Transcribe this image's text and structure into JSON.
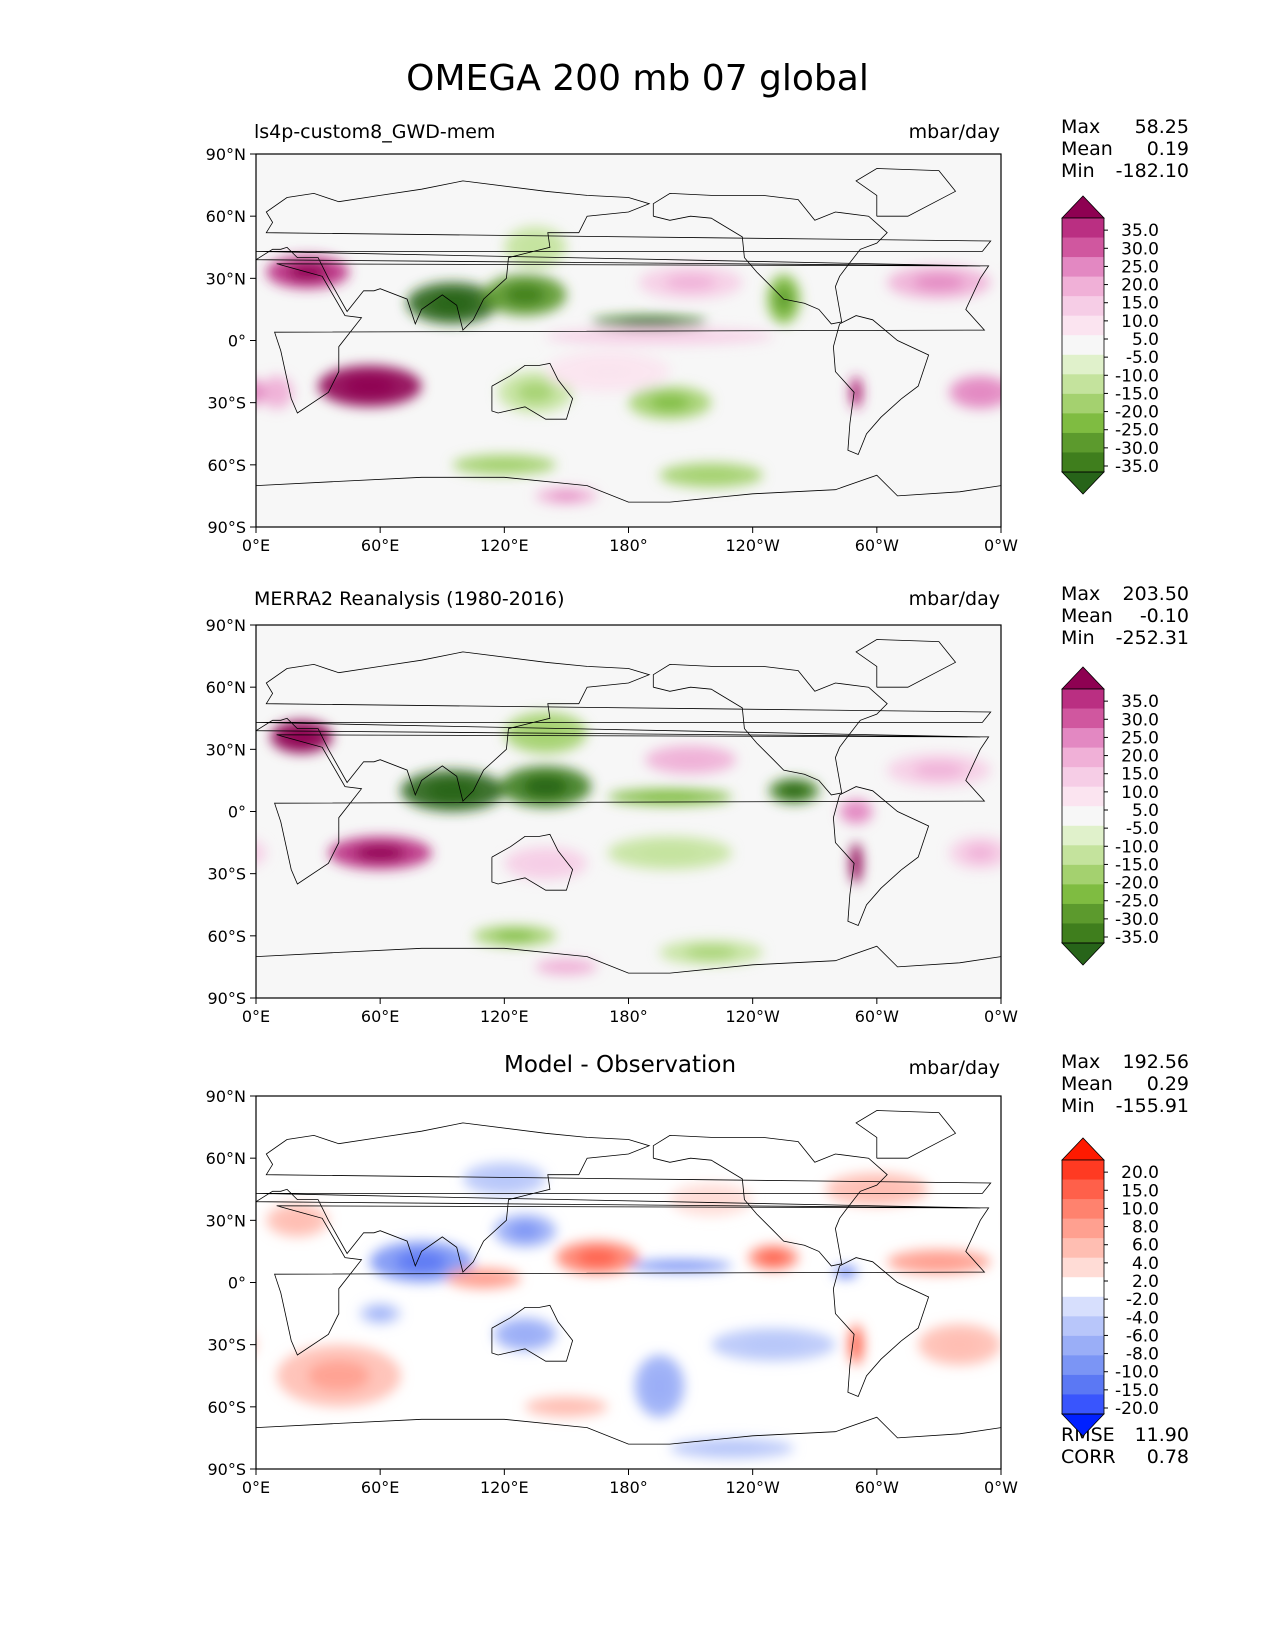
{
  "figure_title": "OMEGA 200 mb 07 global",
  "colors": {
    "field_cmap": [
      "#276419",
      "#3f7e1d",
      "#5c9a2d",
      "#7fbc41",
      "#a4d16f",
      "#c4e39d",
      "#e0f1cb",
      "#f7f7f7",
      "#fbe4f0",
      "#f6cde6",
      "#f0b0d7",
      "#e388c2",
      "#d0579f",
      "#ba2f82",
      "#8e0152"
    ],
    "diff_cmap": [
      "#0020ff",
      "#3955fd",
      "#5b78f4",
      "#7b95f5",
      "#9aaef7",
      "#b8c6fa",
      "#d7dffd",
      "#ffffff",
      "#ffdcd6",
      "#ffbeb2",
      "#ffa090",
      "#ff826e",
      "#ff604a",
      "#ff3a22",
      "#ff1a00"
    ],
    "coast": "#000000"
  },
  "chart_data": [
    {
      "type": "heatmap",
      "title": "ls4p-custom8_GWD-mem",
      "units": "mbar/day",
      "field": "model",
      "ylabels": [
        "90°N",
        "60°N",
        "30°N",
        "0°",
        "30°S",
        "60°S",
        "90°S"
      ],
      "xlabels": [
        "0°E",
        "60°E",
        "120°E",
        "180°",
        "120°W",
        "60°W",
        "0°W"
      ],
      "lon_range": [
        0,
        360
      ],
      "lat_range": [
        -90,
        90
      ],
      "stats": {
        "max_label": "Max",
        "max": "58.25",
        "mean_label": "Mean",
        "mean": "0.19",
        "min_label": "Min",
        "min": "-182.10"
      },
      "colorbar": {
        "levels": [
          "35.0",
          "30.0",
          "25.0",
          "20.0",
          "15.0",
          "10.0",
          "5.0",
          "-5.0",
          "-10.0",
          "-15.0",
          "-20.0",
          "-25.0",
          "-30.0",
          "-35.0"
        ],
        "extend": "both"
      },
      "features": [
        {
          "lon": 25,
          "lat": 33,
          "sx": 20,
          "sy": 8,
          "v": 32
        },
        {
          "lon": 55,
          "lat": -22,
          "sx": 25,
          "sy": 10,
          "v": 34
        },
        {
          "lon": 10,
          "lat": -25,
          "sx": 8,
          "sy": 8,
          "v": 14
        },
        {
          "lon": 95,
          "lat": 18,
          "sx": 22,
          "sy": 10,
          "v": -34
        },
        {
          "lon": 130,
          "lat": 22,
          "sx": 20,
          "sy": 10,
          "v": -26
        },
        {
          "lon": 135,
          "lat": 45,
          "sx": 15,
          "sy": 10,
          "v": -10
        },
        {
          "lon": 190,
          "lat": 9,
          "sx": 28,
          "sy": 3,
          "v": -28
        },
        {
          "lon": 255,
          "lat": 20,
          "sx": 8,
          "sy": 12,
          "v": -22
        },
        {
          "lon": 195,
          "lat": 2,
          "sx": 55,
          "sy": 4,
          "v": 8
        },
        {
          "lon": 210,
          "lat": 28,
          "sx": 25,
          "sy": 8,
          "v": 12
        },
        {
          "lon": 330,
          "lat": 28,
          "sx": 25,
          "sy": 8,
          "v": 16
        },
        {
          "lon": 350,
          "lat": -25,
          "sx": 15,
          "sy": 8,
          "v": 18
        },
        {
          "lon": 135,
          "lat": -25,
          "sx": 18,
          "sy": 10,
          "v": -12
        },
        {
          "lon": 200,
          "lat": -30,
          "sx": 20,
          "sy": 8,
          "v": -16
        },
        {
          "lon": 120,
          "lat": -60,
          "sx": 25,
          "sy": 5,
          "v": -14
        },
        {
          "lon": 220,
          "lat": -65,
          "sx": 25,
          "sy": 6,
          "v": -13
        },
        {
          "lon": 150,
          "lat": -75,
          "sx": 15,
          "sy": 4,
          "v": 16
        },
        {
          "lon": 290,
          "lat": -25,
          "sx": 3,
          "sy": 8,
          "v": 30
        },
        {
          "lon": 170,
          "lat": -15,
          "sx": 30,
          "sy": 10,
          "v": 6
        }
      ]
    },
    {
      "type": "heatmap",
      "title": "MERRA2 Reanalysis (1980-2016)",
      "units": "mbar/day",
      "field": "observation",
      "ylabels": [
        "90°N",
        "60°N",
        "30°N",
        "0°",
        "30°S",
        "60°S",
        "90°S"
      ],
      "xlabels": [
        "0°E",
        "60°E",
        "120°E",
        "180°",
        "120°W",
        "60°W",
        "0°W"
      ],
      "lon_range": [
        0,
        360
      ],
      "lat_range": [
        -90,
        90
      ],
      "stats": {
        "max_label": "Max",
        "max": "203.50",
        "mean_label": "Mean",
        "mean": "-0.10",
        "min_label": "Min",
        "min": "-252.31"
      },
      "colorbar": {
        "levels": [
          "35.0",
          "30.0",
          "25.0",
          "20.0",
          "15.0",
          "10.0",
          "5.0",
          "-5.0",
          "-10.0",
          "-15.0",
          "-20.0",
          "-25.0",
          "-30.0",
          "-35.0"
        ],
        "extend": "both"
      },
      "features": [
        {
          "lon": 22,
          "lat": 36,
          "sx": 15,
          "sy": 8,
          "v": 34
        },
        {
          "lon": 60,
          "lat": -20,
          "sx": 25,
          "sy": 8,
          "v": 28
        },
        {
          "lon": 95,
          "lat": 10,
          "sx": 25,
          "sy": 10,
          "v": -34
        },
        {
          "lon": 140,
          "lat": 12,
          "sx": 22,
          "sy": 10,
          "v": -30
        },
        {
          "lon": 140,
          "lat": 38,
          "sx": 20,
          "sy": 10,
          "v": -14
        },
        {
          "lon": 200,
          "lat": 7,
          "sx": 30,
          "sy": 4,
          "v": -18
        },
        {
          "lon": 260,
          "lat": 10,
          "sx": 12,
          "sy": 6,
          "v": -32
        },
        {
          "lon": 290,
          "lat": 0,
          "sx": 8,
          "sy": 6,
          "v": 18
        },
        {
          "lon": 290,
          "lat": -25,
          "sx": 3,
          "sy": 10,
          "v": 34
        },
        {
          "lon": 210,
          "lat": 25,
          "sx": 22,
          "sy": 7,
          "v": 14
        },
        {
          "lon": 330,
          "lat": 20,
          "sx": 25,
          "sy": 8,
          "v": 12
        },
        {
          "lon": 140,
          "lat": -25,
          "sx": 20,
          "sy": 8,
          "v": 10
        },
        {
          "lon": 200,
          "lat": -20,
          "sx": 30,
          "sy": 8,
          "v": -10
        },
        {
          "lon": 125,
          "lat": -60,
          "sx": 20,
          "sy": 5,
          "v": -16
        },
        {
          "lon": 220,
          "lat": -68,
          "sx": 25,
          "sy": 6,
          "v": -12
        },
        {
          "lon": 150,
          "lat": -75,
          "sx": 15,
          "sy": 4,
          "v": 14
        },
        {
          "lon": 350,
          "lat": -20,
          "sx": 15,
          "sy": 8,
          "v": 12
        }
      ]
    },
    {
      "type": "heatmap",
      "title": "Model - Observation",
      "units": "mbar/day",
      "field": "difference",
      "ylabels": [
        "90°N",
        "60°N",
        "30°N",
        "0°",
        "30°S",
        "60°S",
        "90°S"
      ],
      "xlabels": [
        "0°E",
        "60°E",
        "120°E",
        "180°",
        "120°W",
        "60°W",
        "0°W"
      ],
      "lon_range": [
        0,
        360
      ],
      "lat_range": [
        -90,
        90
      ],
      "stats": {
        "max_label": "Max",
        "max": "192.56",
        "mean_label": "Mean",
        "mean": "0.29",
        "min_label": "Min",
        "min": "-155.91"
      },
      "metrics": {
        "rmse_label": "RMSE",
        "rmse": "11.90",
        "corr_label": "CORR",
        "corr": "0.78"
      },
      "colorbar": {
        "levels": [
          "20.0",
          "15.0",
          "10.0",
          "8.0",
          "6.0",
          "4.0",
          "2.0",
          "-2.0",
          "-4.0",
          "-6.0",
          "-8.0",
          "-10.0",
          "-15.0",
          "-20.0"
        ],
        "extend": "both"
      },
      "features": [
        {
          "lon": 80,
          "lat": 10,
          "sx": 25,
          "sy": 10,
          "v": -20
        },
        {
          "lon": 130,
          "lat": 25,
          "sx": 15,
          "sy": 8,
          "v": -16
        },
        {
          "lon": 165,
          "lat": 12,
          "sx": 20,
          "sy": 8,
          "v": 22
        },
        {
          "lon": 110,
          "lat": 2,
          "sx": 18,
          "sy": 5,
          "v": 14
        },
        {
          "lon": 205,
          "lat": 8,
          "sx": 25,
          "sy": 3,
          "v": -18
        },
        {
          "lon": 250,
          "lat": 12,
          "sx": 12,
          "sy": 6,
          "v": 20
        },
        {
          "lon": 285,
          "lat": 5,
          "sx": 6,
          "sy": 3,
          "v": -20
        },
        {
          "lon": 330,
          "lat": 10,
          "sx": 25,
          "sy": 6,
          "v": 14
        },
        {
          "lon": 40,
          "lat": -45,
          "sx": 30,
          "sy": 15,
          "v": 12
        },
        {
          "lon": 20,
          "lat": 30,
          "sx": 15,
          "sy": 8,
          "v": 10
        },
        {
          "lon": 130,
          "lat": -25,
          "sx": 15,
          "sy": 8,
          "v": -14
        },
        {
          "lon": 195,
          "lat": -50,
          "sx": 12,
          "sy": 15,
          "v": -14
        },
        {
          "lon": 250,
          "lat": -30,
          "sx": 30,
          "sy": 8,
          "v": -8
        },
        {
          "lon": 290,
          "lat": -30,
          "sx": 4,
          "sy": 10,
          "v": 20
        },
        {
          "lon": 340,
          "lat": -30,
          "sx": 20,
          "sy": 10,
          "v": 10
        },
        {
          "lon": 300,
          "lat": 45,
          "sx": 25,
          "sy": 8,
          "v": 10
        },
        {
          "lon": 120,
          "lat": 50,
          "sx": 20,
          "sy": 8,
          "v": -8
        },
        {
          "lon": 220,
          "lat": 40,
          "sx": 20,
          "sy": 8,
          "v": 6
        },
        {
          "lon": 150,
          "lat": -60,
          "sx": 20,
          "sy": 5,
          "v": 8
        },
        {
          "lon": 230,
          "lat": -80,
          "sx": 30,
          "sy": 5,
          "v": -8
        },
        {
          "lon": 60,
          "lat": -15,
          "sx": 10,
          "sy": 5,
          "v": -12
        }
      ]
    }
  ]
}
